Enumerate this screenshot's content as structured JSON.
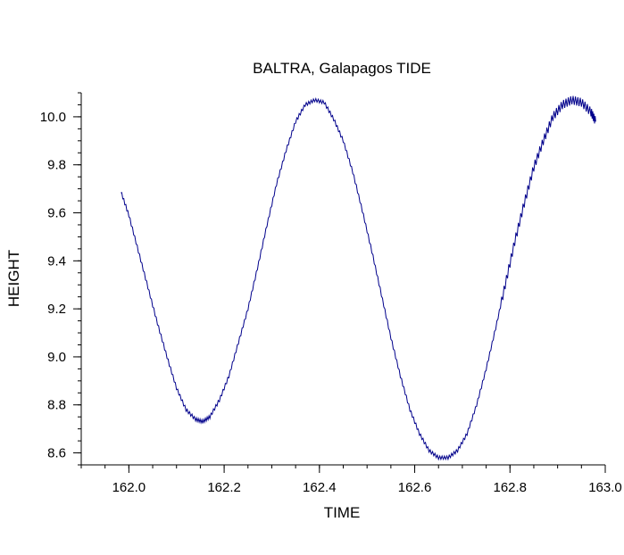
{
  "chart_data": {
    "type": "line",
    "title": "BALTRA, Galapagos TIDE",
    "xlabel": "TIME",
    "ylabel": "HEIGHT",
    "xlim": [
      161.9,
      163.0
    ],
    "ylim": [
      8.55,
      10.1
    ],
    "x_ticks": [
      "162.0",
      "162.2",
      "162.4",
      "162.6",
      "162.8",
      "163.0"
    ],
    "x_tick_values": [
      162.0,
      162.2,
      162.4,
      162.6,
      162.8,
      163.0
    ],
    "y_ticks": [
      "8.6",
      "8.8",
      "9.0",
      "9.2",
      "9.4",
      "9.6",
      "9.8",
      "10.0"
    ],
    "y_tick_values": [
      8.6,
      8.8,
      9.0,
      9.2,
      9.4,
      9.6,
      9.8,
      10.0
    ],
    "grid": false,
    "line_color": "#00008b",
    "series": [
      {
        "x": [
          161.983,
          162.0,
          162.02,
          162.04,
          162.06,
          162.08,
          162.1,
          162.12,
          162.14,
          162.155,
          162.17,
          162.19,
          162.21,
          162.23,
          162.25,
          162.27,
          162.29,
          162.31,
          162.33,
          162.35,
          162.37,
          162.39,
          162.41,
          162.43,
          162.45,
          162.47,
          162.49,
          162.51,
          162.53,
          162.55,
          162.57,
          162.59,
          162.61,
          162.63,
          162.65,
          162.67,
          162.69,
          162.71,
          162.73,
          162.75,
          162.77,
          162.79,
          162.81,
          162.83,
          162.85,
          162.87,
          162.89,
          162.91,
          162.93,
          162.95,
          162.97,
          162.98
        ],
        "y": [
          9.69,
          9.59,
          9.44,
          9.29,
          9.14,
          9.0,
          8.87,
          8.78,
          8.74,
          8.73,
          8.75,
          8.82,
          8.92,
          9.06,
          9.2,
          9.37,
          9.55,
          9.72,
          9.86,
          9.98,
          10.05,
          10.07,
          10.06,
          9.99,
          9.9,
          9.77,
          9.61,
          9.44,
          9.26,
          9.08,
          8.92,
          8.78,
          8.68,
          8.61,
          8.58,
          8.58,
          8.61,
          8.68,
          8.8,
          8.95,
          9.12,
          9.3,
          9.48,
          9.64,
          9.79,
          9.9,
          10.0,
          10.05,
          10.07,
          10.06,
          10.02,
          9.98
        ]
      }
    ]
  }
}
